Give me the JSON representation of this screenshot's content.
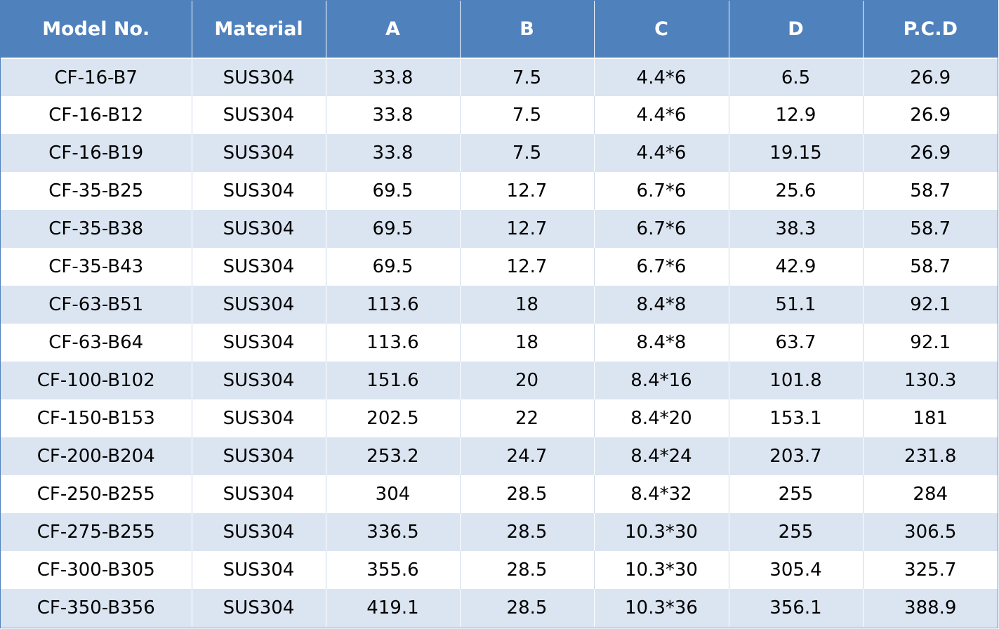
{
  "table": {
    "headers": [
      "Model No.",
      "Material",
      "A",
      "B",
      "C",
      "D",
      "P.C.D"
    ],
    "rows": [
      [
        "CF-16-B7",
        "SUS304",
        "33.8",
        "7.5",
        "4.4*6",
        "6.5",
        "26.9"
      ],
      [
        "CF-16-B12",
        "SUS304",
        "33.8",
        "7.5",
        "4.4*6",
        "12.9",
        "26.9"
      ],
      [
        "CF-16-B19",
        "SUS304",
        "33.8",
        "7.5",
        "4.4*6",
        "19.15",
        "26.9"
      ],
      [
        "CF-35-B25",
        "SUS304",
        "69.5",
        "12.7",
        "6.7*6",
        "25.6",
        "58.7"
      ],
      [
        "CF-35-B38",
        "SUS304",
        "69.5",
        "12.7",
        "6.7*6",
        "38.3",
        "58.7"
      ],
      [
        "CF-35-B43",
        "SUS304",
        "69.5",
        "12.7",
        "6.7*6",
        "42.9",
        "58.7"
      ],
      [
        "CF-63-B51",
        "SUS304",
        "113.6",
        "18",
        "8.4*8",
        "51.1",
        "92.1"
      ],
      [
        "CF-63-B64",
        "SUS304",
        "113.6",
        "18",
        "8.4*8",
        "63.7",
        "92.1"
      ],
      [
        "CF-100-B102",
        "SUS304",
        "151.6",
        "20",
        "8.4*16",
        "101.8",
        "130.3"
      ],
      [
        "CF-150-B153",
        "SUS304",
        "202.5",
        "22",
        "8.4*20",
        "153.1",
        "181"
      ],
      [
        "CF-200-B204",
        "SUS304",
        "253.2",
        "24.7",
        "8.4*24",
        "203.7",
        "231.8"
      ],
      [
        "CF-250-B255",
        "SUS304",
        "304",
        "28.5",
        "8.4*32",
        "255",
        "284"
      ],
      [
        "CF-275-B255",
        "SUS304",
        "336.5",
        "28.5",
        "10.3*30",
        "255",
        "306.5"
      ],
      [
        "CF-300-B305",
        "SUS304",
        "355.6",
        "28.5",
        "10.3*30",
        "305.4",
        "325.7"
      ],
      [
        "CF-350-B356",
        "SUS304",
        "419.1",
        "28.5",
        "10.3*36",
        "356.1",
        "388.9"
      ]
    ]
  },
  "colors": {
    "header_bg": "#4f81bd",
    "band_bg": "#dbe5f1",
    "row_bg": "#ffffff"
  }
}
